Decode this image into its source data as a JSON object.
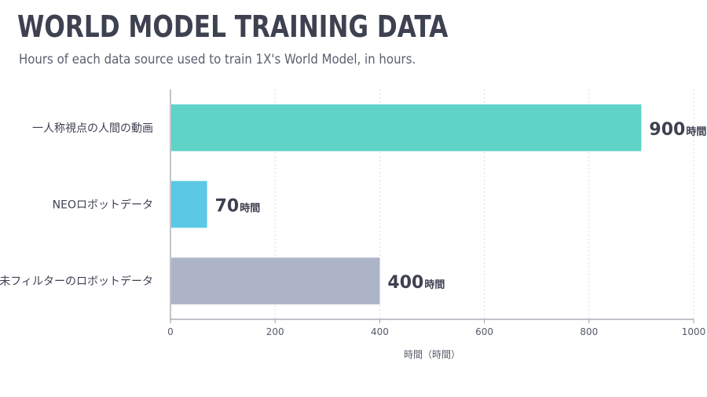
{
  "chart_data": {
    "type": "bar",
    "orientation": "horizontal",
    "title": "WORLD MODEL TRAINING DATA",
    "subtitle": "Hours of each data source used to train 1X's World Model, in hours.",
    "xlabel": "時間（時間）",
    "ylabel": "",
    "xlim": [
      0,
      1000
    ],
    "xticks": [
      0,
      200,
      400,
      600,
      800,
      1000
    ],
    "grid": "vertical-dashed",
    "legend": "none",
    "categories": [
      "一人称視点の人間の動画",
      "NEOロボットデータ",
      "未フィルターのロボットデータ"
    ],
    "values": [
      900,
      70,
      400
    ],
    "value_unit": "時間",
    "colors": [
      "#5fd3c8",
      "#5bc8e6",
      "#aeb4c8"
    ]
  }
}
